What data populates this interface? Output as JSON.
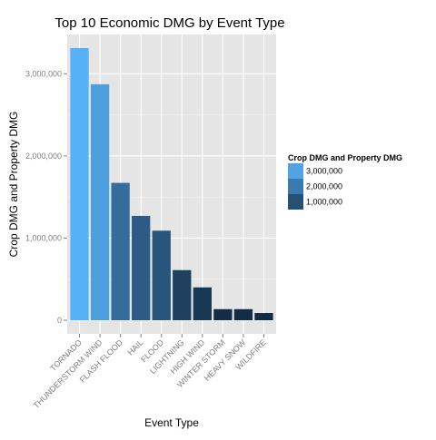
{
  "chart_data": {
    "type": "bar",
    "title": "Top 10 Economic DMG by Event Type",
    "xlabel": "Event Type",
    "ylabel": "Crop DMG and Property DMG",
    "categories": [
      "TORNADO",
      "THUNDERSTORM WIND",
      "FLASH FLOOD",
      "HAIL",
      "FLOOD",
      "LIGHTNING",
      "HIGH WIND",
      "WINTER STORM",
      "HEAVY SNOW",
      "WILDFIRE"
    ],
    "values": [
      3312277,
      2871941,
      1672000,
      1270000,
      1090000,
      610000,
      400000,
      135000,
      135000,
      88000
    ],
    "ylim": [
      0,
      3312277
    ],
    "yticks": [
      0,
      1000000,
      2000000,
      3000000
    ],
    "ytick_labels": [
      "0",
      "1,000,000",
      "2,000,000",
      "3,000,000"
    ],
    "grid": true,
    "legend": {
      "title": "Crop DMG and Property DMG",
      "placement": "right",
      "entries": [
        {
          "label": "3,000,000",
          "value": 3000000
        },
        {
          "label": "2,000,000",
          "value": 2000000
        },
        {
          "label": "1,000,000",
          "value": 1000000
        }
      ]
    },
    "colors": {
      "panel_bg": "#e5e5e5",
      "grid_major": "#ffffff",
      "grid_minor": "#f2f2f2",
      "low": "#132b43",
      "high": "#56b1f7",
      "tick_text": "#7f7f7f"
    }
  }
}
